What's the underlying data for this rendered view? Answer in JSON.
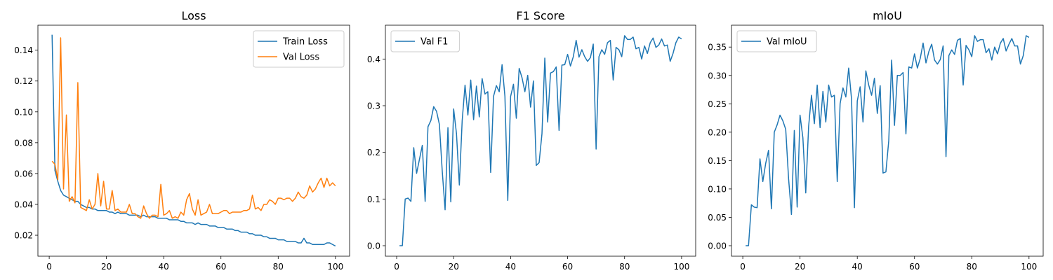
{
  "colors": {
    "train": "#1f77b4",
    "val": "#ff7f0e"
  },
  "chart_data": [
    {
      "type": "line",
      "title": "Loss",
      "xlim": [
        -3.95,
        104.95
      ],
      "ylim": [
        0.0064,
        0.1562
      ],
      "xticks": [
        0,
        20,
        40,
        60,
        80,
        100
      ],
      "yticks": [
        0.02,
        0.04,
        0.06,
        0.08,
        0.1,
        0.12,
        0.14
      ],
      "ytick_labels": [
        "0.02",
        "0.04",
        "0.06",
        "0.08",
        "0.10",
        "0.12",
        "0.14"
      ],
      "legend": "upper right",
      "x": [
        1,
        2,
        3,
        4,
        5,
        6,
        7,
        8,
        9,
        10,
        11,
        12,
        13,
        14,
        15,
        16,
        17,
        18,
        19,
        20,
        21,
        22,
        23,
        24,
        25,
        26,
        27,
        28,
        29,
        30,
        31,
        32,
        33,
        34,
        35,
        36,
        37,
        38,
        39,
        40,
        41,
        42,
        43,
        44,
        45,
        46,
        47,
        48,
        49,
        50,
        51,
        52,
        53,
        54,
        55,
        56,
        57,
        58,
        59,
        60,
        61,
        62,
        63,
        64,
        65,
        66,
        67,
        68,
        69,
        70,
        71,
        72,
        73,
        74,
        75,
        76,
        77,
        78,
        79,
        80,
        81,
        82,
        83,
        84,
        85,
        86,
        87,
        88,
        89,
        90,
        91,
        92,
        93,
        94,
        95,
        96,
        97,
        98,
        99,
        100
      ],
      "series": [
        {
          "name": "Train Loss",
          "color_key": "train",
          "values": [
            0.15,
            0.062,
            0.055,
            0.049,
            0.046,
            0.045,
            0.044,
            0.043,
            0.042,
            0.042,
            0.04,
            0.039,
            0.038,
            0.038,
            0.037,
            0.037,
            0.036,
            0.036,
            0.036,
            0.036,
            0.035,
            0.035,
            0.034,
            0.035,
            0.034,
            0.034,
            0.034,
            0.033,
            0.033,
            0.033,
            0.033,
            0.032,
            0.033,
            0.032,
            0.032,
            0.032,
            0.032,
            0.031,
            0.031,
            0.031,
            0.031,
            0.03,
            0.03,
            0.03,
            0.03,
            0.029,
            0.029,
            0.028,
            0.028,
            0.028,
            0.027,
            0.028,
            0.027,
            0.027,
            0.027,
            0.026,
            0.026,
            0.026,
            0.025,
            0.025,
            0.025,
            0.024,
            0.024,
            0.024,
            0.023,
            0.023,
            0.022,
            0.022,
            0.022,
            0.021,
            0.021,
            0.02,
            0.02,
            0.02,
            0.019,
            0.019,
            0.018,
            0.018,
            0.018,
            0.017,
            0.017,
            0.017,
            0.016,
            0.016,
            0.016,
            0.016,
            0.015,
            0.015,
            0.018,
            0.015,
            0.015,
            0.014,
            0.014,
            0.014,
            0.014,
            0.014,
            0.015,
            0.015,
            0.014,
            0.013
          ]
        },
        {
          "name": "Val Loss",
          "color_key": "val",
          "values": [
            0.068,
            0.066,
            0.056,
            0.148,
            0.05,
            0.098,
            0.042,
            0.045,
            0.041,
            0.119,
            0.038,
            0.037,
            0.036,
            0.043,
            0.037,
            0.04,
            0.06,
            0.039,
            0.055,
            0.037,
            0.037,
            0.049,
            0.036,
            0.037,
            0.035,
            0.035,
            0.035,
            0.04,
            0.034,
            0.034,
            0.032,
            0.031,
            0.039,
            0.034,
            0.031,
            0.033,
            0.033,
            0.032,
            0.053,
            0.033,
            0.034,
            0.036,
            0.031,
            0.032,
            0.031,
            0.035,
            0.033,
            0.043,
            0.047,
            0.037,
            0.033,
            0.043,
            0.033,
            0.034,
            0.035,
            0.04,
            0.034,
            0.034,
            0.034,
            0.035,
            0.036,
            0.036,
            0.034,
            0.035,
            0.035,
            0.035,
            0.035,
            0.036,
            0.036,
            0.037,
            0.046,
            0.037,
            0.038,
            0.036,
            0.04,
            0.04,
            0.043,
            0.042,
            0.04,
            0.044,
            0.044,
            0.043,
            0.044,
            0.044,
            0.042,
            0.044,
            0.048,
            0.045,
            0.044,
            0.046,
            0.052,
            0.048,
            0.05,
            0.054,
            0.057,
            0.051,
            0.057,
            0.052,
            0.054,
            0.052
          ]
        }
      ]
    },
    {
      "type": "line",
      "title": "F1 Score",
      "xlim": [
        -3.95,
        104.95
      ],
      "ylim": [
        -0.0225,
        0.4725
      ],
      "xticks": [
        0,
        20,
        40,
        60,
        80,
        100
      ],
      "yticks": [
        0.0,
        0.1,
        0.2,
        0.3,
        0.4
      ],
      "ytick_labels": [
        "0.0",
        "0.1",
        "0.2",
        "0.3",
        "0.4"
      ],
      "legend": "upper left",
      "x": [
        1,
        2,
        3,
        4,
        5,
        6,
        7,
        8,
        9,
        10,
        11,
        12,
        13,
        14,
        15,
        16,
        17,
        18,
        19,
        20,
        21,
        22,
        23,
        24,
        25,
        26,
        27,
        28,
        29,
        30,
        31,
        32,
        33,
        34,
        35,
        36,
        37,
        38,
        39,
        40,
        41,
        42,
        43,
        44,
        45,
        46,
        47,
        48,
        49,
        50,
        51,
        52,
        53,
        54,
        55,
        56,
        57,
        58,
        59,
        60,
        61,
        62,
        63,
        64,
        65,
        66,
        67,
        68,
        69,
        70,
        71,
        72,
        73,
        74,
        75,
        76,
        77,
        78,
        79,
        80,
        81,
        82,
        83,
        84,
        85,
        86,
        87,
        88,
        89,
        90,
        91,
        92,
        93,
        94,
        95,
        96,
        97,
        98,
        99,
        100
      ],
      "series": [
        {
          "name": "Val F1",
          "color_key": "train",
          "values": [
            0.0,
            0.0,
            0.1,
            0.102,
            0.095,
            0.21,
            0.155,
            0.185,
            0.215,
            0.095,
            0.255,
            0.268,
            0.298,
            0.288,
            0.26,
            0.16,
            0.077,
            0.253,
            0.094,
            0.293,
            0.24,
            0.13,
            0.268,
            0.344,
            0.28,
            0.355,
            0.27,
            0.342,
            0.276,
            0.358,
            0.325,
            0.33,
            0.157,
            0.32,
            0.343,
            0.33,
            0.388,
            0.32,
            0.097,
            0.32,
            0.346,
            0.273,
            0.38,
            0.36,
            0.33,
            0.365,
            0.297,
            0.353,
            0.172,
            0.178,
            0.24,
            0.402,
            0.265,
            0.37,
            0.373,
            0.383,
            0.247,
            0.387,
            0.388,
            0.41,
            0.385,
            0.405,
            0.44,
            0.404,
            0.42,
            0.405,
            0.395,
            0.403,
            0.432,
            0.207,
            0.405,
            0.42,
            0.41,
            0.435,
            0.44,
            0.355,
            0.425,
            0.42,
            0.405,
            0.45,
            0.442,
            0.442,
            0.447,
            0.422,
            0.425,
            0.4,
            0.428,
            0.412,
            0.435,
            0.445,
            0.425,
            0.43,
            0.443,
            0.428,
            0.43,
            0.395,
            0.412,
            0.435,
            0.447,
            0.443
          ]
        }
      ]
    },
    {
      "type": "line",
      "title": "mIoU",
      "xlim": [
        -3.95,
        104.95
      ],
      "ylim": [
        -0.0185,
        0.3885
      ],
      "xticks": [
        0,
        20,
        40,
        60,
        80,
        100
      ],
      "yticks": [
        0.0,
        0.05,
        0.1,
        0.15,
        0.2,
        0.25,
        0.3,
        0.35
      ],
      "ytick_labels": [
        "0.00",
        "0.05",
        "0.10",
        "0.15",
        "0.20",
        "0.25",
        "0.30",
        "0.35"
      ],
      "legend": "upper left",
      "x": [
        1,
        2,
        3,
        4,
        5,
        6,
        7,
        8,
        9,
        10,
        11,
        12,
        13,
        14,
        15,
        16,
        17,
        18,
        19,
        20,
        21,
        22,
        23,
        24,
        25,
        26,
        27,
        28,
        29,
        30,
        31,
        32,
        33,
        34,
        35,
        36,
        37,
        38,
        39,
        40,
        41,
        42,
        43,
        44,
        45,
        46,
        47,
        48,
        49,
        50,
        51,
        52,
        53,
        54,
        55,
        56,
        57,
        58,
        59,
        60,
        61,
        62,
        63,
        64,
        65,
        66,
        67,
        68,
        69,
        70,
        71,
        72,
        73,
        74,
        75,
        76,
        77,
        78,
        79,
        80,
        81,
        82,
        83,
        84,
        85,
        86,
        87,
        88,
        89,
        90,
        91,
        92,
        93,
        94,
        95,
        96,
        97,
        98,
        99,
        100
      ],
      "series": [
        {
          "name": "Val mIoU",
          "color_key": "train",
          "values": [
            0.0,
            0.0,
            0.072,
            0.068,
            0.067,
            0.153,
            0.113,
            0.145,
            0.168,
            0.065,
            0.2,
            0.213,
            0.23,
            0.22,
            0.205,
            0.118,
            0.055,
            0.203,
            0.068,
            0.23,
            0.19,
            0.093,
            0.21,
            0.265,
            0.215,
            0.283,
            0.208,
            0.272,
            0.218,
            0.283,
            0.262,
            0.265,
            0.113,
            0.25,
            0.278,
            0.262,
            0.313,
            0.258,
            0.067,
            0.255,
            0.28,
            0.218,
            0.308,
            0.283,
            0.265,
            0.295,
            0.233,
            0.282,
            0.128,
            0.13,
            0.185,
            0.327,
            0.212,
            0.3,
            0.3,
            0.305,
            0.197,
            0.315,
            0.313,
            0.338,
            0.313,
            0.33,
            0.357,
            0.322,
            0.342,
            0.355,
            0.327,
            0.32,
            0.328,
            0.352,
            0.157,
            0.335,
            0.345,
            0.337,
            0.362,
            0.365,
            0.283,
            0.353,
            0.345,
            0.333,
            0.37,
            0.36,
            0.363,
            0.363,
            0.34,
            0.347,
            0.327,
            0.35,
            0.338,
            0.357,
            0.365,
            0.343,
            0.355,
            0.365,
            0.352,
            0.352,
            0.32,
            0.335,
            0.37,
            0.367
          ]
        }
      ]
    }
  ]
}
